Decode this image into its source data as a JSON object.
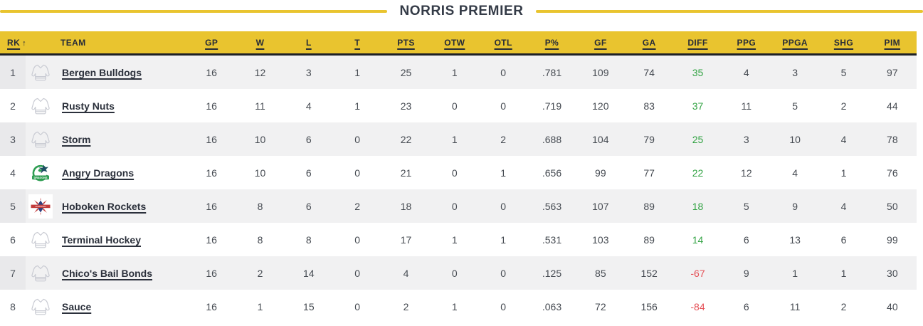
{
  "title": "NORRIS PREMIER",
  "colors": {
    "accent_yellow": "#e9c42f",
    "header_text": "#272c37",
    "title_text": "#343b47",
    "row_alt_gray": "#f1f1f2",
    "positive_green": "#33a344",
    "negative_red": "#e55056"
  },
  "table": {
    "columns": [
      {
        "key": "rk",
        "label": "RK",
        "underline": true,
        "sorted": "asc"
      },
      {
        "key": "team",
        "label": "TEAM",
        "underline": false
      },
      {
        "key": "gp",
        "label": "GP",
        "underline": true
      },
      {
        "key": "w",
        "label": "W",
        "underline": true
      },
      {
        "key": "l",
        "label": "L",
        "underline": true
      },
      {
        "key": "t",
        "label": "T",
        "underline": true
      },
      {
        "key": "pts",
        "label": "PTS",
        "underline": true
      },
      {
        "key": "otw",
        "label": "OTW",
        "underline": true
      },
      {
        "key": "otl",
        "label": "OTL",
        "underline": true
      },
      {
        "key": "pct",
        "label": "P%",
        "underline": true
      },
      {
        "key": "gf",
        "label": "GF",
        "underline": true
      },
      {
        "key": "ga",
        "label": "GA",
        "underline": true
      },
      {
        "key": "diff",
        "label": "DIFF",
        "underline": true
      },
      {
        "key": "ppg",
        "label": "PPG",
        "underline": true
      },
      {
        "key": "ppga",
        "label": "PPGA",
        "underline": true
      },
      {
        "key": "shg",
        "label": "SHG",
        "underline": true
      },
      {
        "key": "pim",
        "label": "PIM",
        "underline": true
      }
    ],
    "teams": [
      {
        "rank": "1",
        "name": "Bergen Bulldogs",
        "icon": "jersey-icon",
        "stats": [
          "16",
          "12",
          "3",
          "1",
          "25",
          "1",
          "0",
          ".781",
          "109",
          "74",
          "35",
          "4",
          "3",
          "5",
          "97"
        ]
      },
      {
        "rank": "2",
        "name": "Rusty Nuts",
        "icon": "jersey-icon",
        "stats": [
          "16",
          "11",
          "4",
          "1",
          "23",
          "0",
          "0",
          ".719",
          "120",
          "83",
          "37",
          "11",
          "5",
          "2",
          "44"
        ]
      },
      {
        "rank": "3",
        "name": "Storm",
        "icon": "jersey-icon",
        "stats": [
          "16",
          "10",
          "6",
          "0",
          "22",
          "1",
          "2",
          ".688",
          "104",
          "79",
          "25",
          "3",
          "10",
          "4",
          "78"
        ]
      },
      {
        "rank": "4",
        "name": "Angry Dragons",
        "icon": "dragons-logo-icon",
        "stats": [
          "16",
          "10",
          "6",
          "0",
          "21",
          "0",
          "1",
          ".656",
          "99",
          "77",
          "22",
          "12",
          "4",
          "1",
          "76"
        ]
      },
      {
        "rank": "5",
        "name": "Hoboken Rockets",
        "icon": "rockets-logo-icon",
        "stats": [
          "16",
          "8",
          "6",
          "2",
          "18",
          "0",
          "0",
          ".563",
          "107",
          "89",
          "18",
          "5",
          "9",
          "4",
          "50"
        ]
      },
      {
        "rank": "6",
        "name": "Terminal Hockey",
        "icon": "jersey-icon",
        "stats": [
          "16",
          "8",
          "8",
          "0",
          "17",
          "1",
          "1",
          ".531",
          "103",
          "89",
          "14",
          "6",
          "13",
          "6",
          "99"
        ]
      },
      {
        "rank": "7",
        "name": "Chico's Bail Bonds",
        "icon": "jersey-icon",
        "stats": [
          "16",
          "2",
          "14",
          "0",
          "4",
          "0",
          "0",
          ".125",
          "85",
          "152",
          "-67",
          "9",
          "1",
          "1",
          "30"
        ]
      },
      {
        "rank": "8",
        "name": "Sauce",
        "icon": "jersey-icon",
        "stats": [
          "16",
          "1",
          "15",
          "0",
          "2",
          "1",
          "0",
          ".063",
          "72",
          "156",
          "-84",
          "6",
          "11",
          "2",
          "40"
        ]
      }
    ]
  }
}
